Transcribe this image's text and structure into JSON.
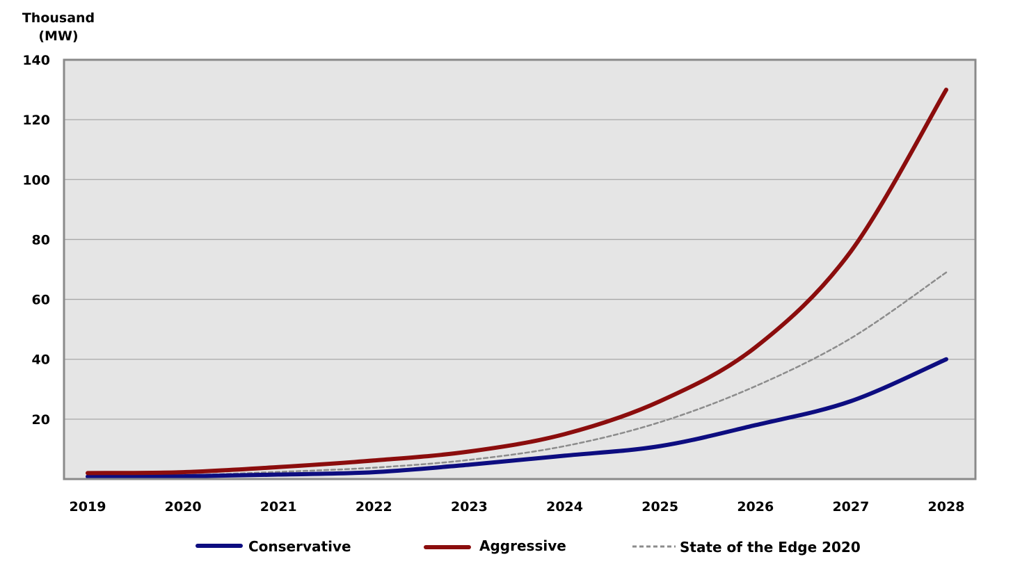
{
  "chart_data": {
    "type": "line",
    "ylabel": "Thousand (MW)",
    "ylabel_lines": [
      "Thousand",
      "(MW)"
    ],
    "x": [
      "2019",
      "2020",
      "2021",
      "2022",
      "2023",
      "2024",
      "2025",
      "2026",
      "2027",
      "2028"
    ],
    "ylim": [
      0,
      140
    ],
    "yticks": [
      20,
      40,
      60,
      80,
      100,
      120,
      140
    ],
    "grid": true,
    "legend_position": "bottom",
    "series": [
      {
        "name": "Conservative",
        "color": "#0d0d80",
        "style": "solid",
        "values": [
          0.8,
          0.9,
          1.5,
          2.3,
          4.8,
          7.8,
          11,
          18,
          26,
          40
        ]
      },
      {
        "name": "Aggressive",
        "color": "#8b0d0d",
        "style": "solid",
        "values": [
          2,
          2.3,
          4,
          6.2,
          9.2,
          15,
          26,
          44,
          76,
          130
        ]
      },
      {
        "name": "State of the Edge 2020",
        "color": "#8c8c8c",
        "style": "dashed",
        "values": [
          1.2,
          1.3,
          2.4,
          3.8,
          6.4,
          11,
          19,
          31,
          47,
          69
        ]
      }
    ],
    "plot_background": "#e5e5e5",
    "grid_color": "#a8a8a8",
    "frame_color": "#8a8a8a"
  }
}
